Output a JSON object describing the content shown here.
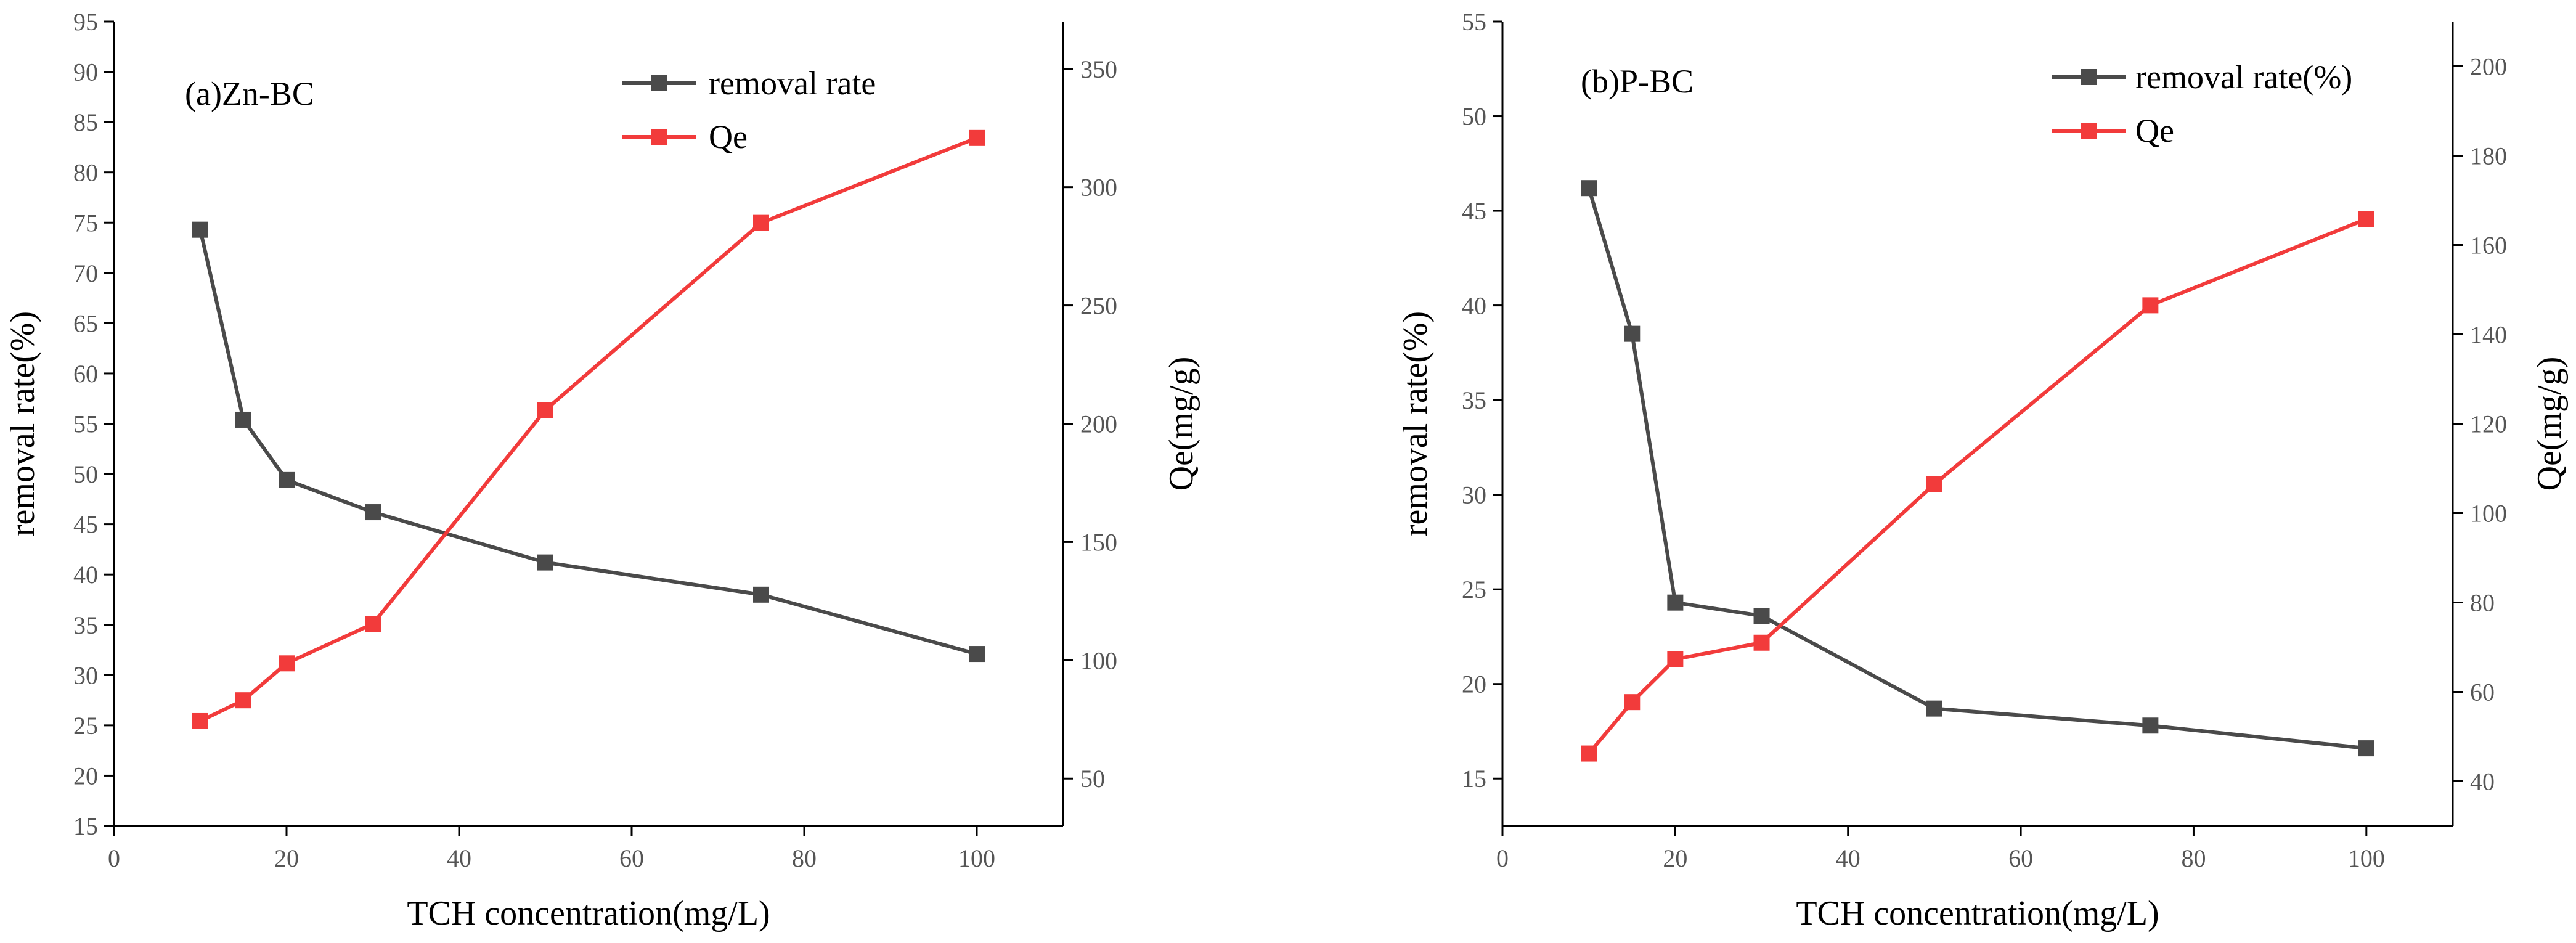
{
  "chart_data": [
    {
      "type": "line",
      "panel_label": "(a)Zn-BC",
      "xlabel": "TCH concentration(mg/L)",
      "ylabel": "removal rate(%)",
      "y2label": "Qe(mg/g)",
      "xlim": [
        0,
        110
      ],
      "xticks": [
        0,
        20,
        40,
        60,
        80,
        100
      ],
      "ylim": [
        15,
        95
      ],
      "yticks": [
        15,
        20,
        25,
        30,
        35,
        40,
        45,
        50,
        55,
        60,
        65,
        70,
        75,
        80,
        85,
        90,
        95
      ],
      "y2lim": [
        30,
        370
      ],
      "y2ticks": [
        50,
        100,
        150,
        200,
        250,
        300,
        350
      ],
      "legend_position": "top-right",
      "x": [
        10,
        15,
        20,
        30,
        50,
        75,
        100
      ],
      "series": [
        {
          "name": "removal rate",
          "axis": "left",
          "color": "#4a4a4a",
          "values": [
            74.3,
            55.4,
            49.4,
            46.2,
            41.2,
            38.0,
            32.1
          ]
        },
        {
          "name": "Qe",
          "axis": "right",
          "color": "#f23b3b",
          "values": [
            74.3,
            83.1,
            98.7,
            115.4,
            205.8,
            284.9,
            320.8
          ]
        }
      ]
    },
    {
      "type": "line",
      "panel_label": "(b)P-BC",
      "xlabel": "TCH concentration(mg/L)",
      "ylabel": "removal rate(%)",
      "y2label": "Qe(mg/g)",
      "xlim": [
        0,
        110
      ],
      "xticks": [
        0,
        20,
        40,
        60,
        80,
        100
      ],
      "ylim": [
        12.5,
        55
      ],
      "yticks": [
        15,
        20,
        25,
        30,
        35,
        40,
        45,
        50,
        55
      ],
      "y2lim": [
        30,
        210
      ],
      "y2ticks": [
        40,
        60,
        80,
        100,
        120,
        140,
        160,
        180,
        200
      ],
      "legend_position": "top-right",
      "x": [
        10,
        15,
        20,
        30,
        50,
        75,
        100
      ],
      "series": [
        {
          "name": "removal rate(%)",
          "axis": "left",
          "color": "#4a4a4a",
          "values": [
            46.2,
            38.5,
            24.3,
            23.6,
            18.7,
            17.8,
            16.6
          ]
        },
        {
          "name": "Qe",
          "axis": "right",
          "color": "#f23b3b",
          "values": [
            46.2,
            57.7,
            67.3,
            71.0,
            106.5,
            146.5,
            165.8
          ]
        }
      ]
    }
  ]
}
